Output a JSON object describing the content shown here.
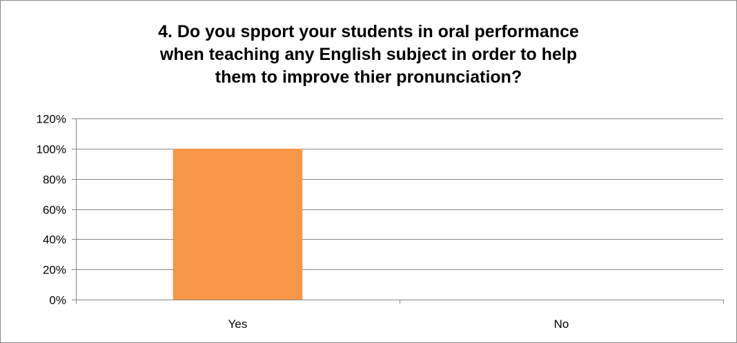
{
  "chart_data": {
    "type": "bar",
    "title_lines": [
      "4. Do you spport your students in oral performance",
      "when teaching any English subject in order to help",
      "them to improve thier pronunciation?"
    ],
    "categories": [
      "Yes",
      "No"
    ],
    "values": [
      100,
      0
    ],
    "ylim": [
      0,
      120
    ],
    "yticks": [
      "0%",
      "20%",
      "40%",
      "60%",
      "80%",
      "100%",
      "120%"
    ],
    "grid": true,
    "legend": "none",
    "bar_color": "#F79646",
    "grid_color": "#868686"
  }
}
